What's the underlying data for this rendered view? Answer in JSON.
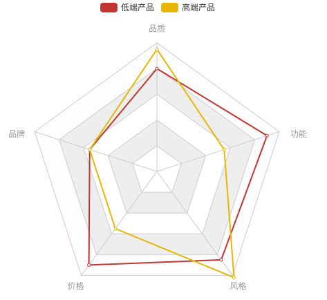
{
  "chart_data": {
    "type": "radar",
    "indicators": [
      "品质",
      "功能",
      "风格",
      "价格",
      "品牌"
    ],
    "max": 100,
    "split_number": 5,
    "series": [
      {
        "name": "低端产品",
        "color": "#c23531",
        "values": [
          80,
          90,
          85,
          90,
          55
        ]
      },
      {
        "name": "高端产品",
        "color": "#e6b600",
        "values": [
          95,
          55,
          102,
          55,
          55
        ]
      }
    ],
    "legend_position": "top-center",
    "split_area_colors": [
      "#ffffff",
      "#eeeeee",
      "#ffffff",
      "#eeeeee",
      "#fdfdfd"
    ],
    "axis_line_color": "#cccccc"
  }
}
